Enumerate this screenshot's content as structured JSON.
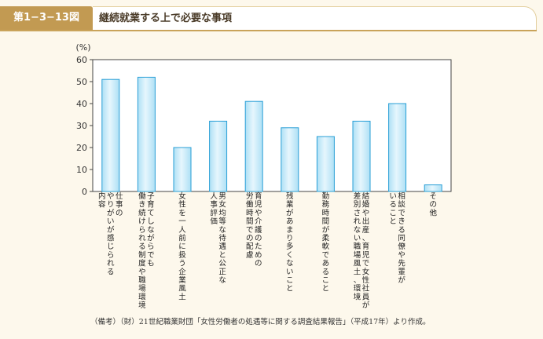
{
  "header": {
    "figure_label": "第1−3−13図",
    "title": "継続就業する上で必要な事項"
  },
  "note": "（備考）（財）21世紀職業財団「女性労働者の処遇等に関する調査結果報告」（平成17年）より作成。",
  "chart_data": {
    "type": "bar",
    "ylabel": "(%)",
    "ylim": [
      0,
      60
    ],
    "yticks": [
      0,
      10,
      20,
      30,
      40,
      50,
      60
    ],
    "grid": false,
    "categories": [
      "仕事のやりがいが感じられる内容",
      "子育てしながらでも働き続けられる制度や職場環境",
      "女性を一人前に扱う企業風土",
      "男女均等な待遇と公正な人事評価",
      "育児や介護のための労働時間での配慮",
      "残業があまり多くないこと",
      "勤務時間が柔軟であること",
      "結婚や出産、育児で女性社員が差別されない職場風土、環境",
      "相談できる同僚や先輩がいること",
      "その他"
    ],
    "category_lines": [
      [
        "仕事の",
        "やりがいが感じられる",
        "内容"
      ],
      [
        "子育てしながらでも",
        "働き続けられる制度や職場環境"
      ],
      [
        "女性を一人前に扱う企業風土"
      ],
      [
        "男女均等な待遇と公正な",
        "人事評価"
      ],
      [
        "育児や介護のための",
        "労働時間での配慮"
      ],
      [
        "残業があまり多くないこと"
      ],
      [
        "勤務時間が柔軟であること"
      ],
      [
        "結婚や出産、育児で女性社員が",
        "差別されない職場風土、環境"
      ],
      [
        "相談できる同僚や先輩が",
        "いること"
      ],
      [
        "その他"
      ]
    ],
    "values": [
      51,
      52,
      20,
      32,
      41,
      29,
      25,
      32,
      40,
      3
    ],
    "colors": {
      "bar_fill": "#aee0f5",
      "bar_stroke": "#2a9fd6",
      "bar_highlight": "#e6f6fd"
    }
  }
}
